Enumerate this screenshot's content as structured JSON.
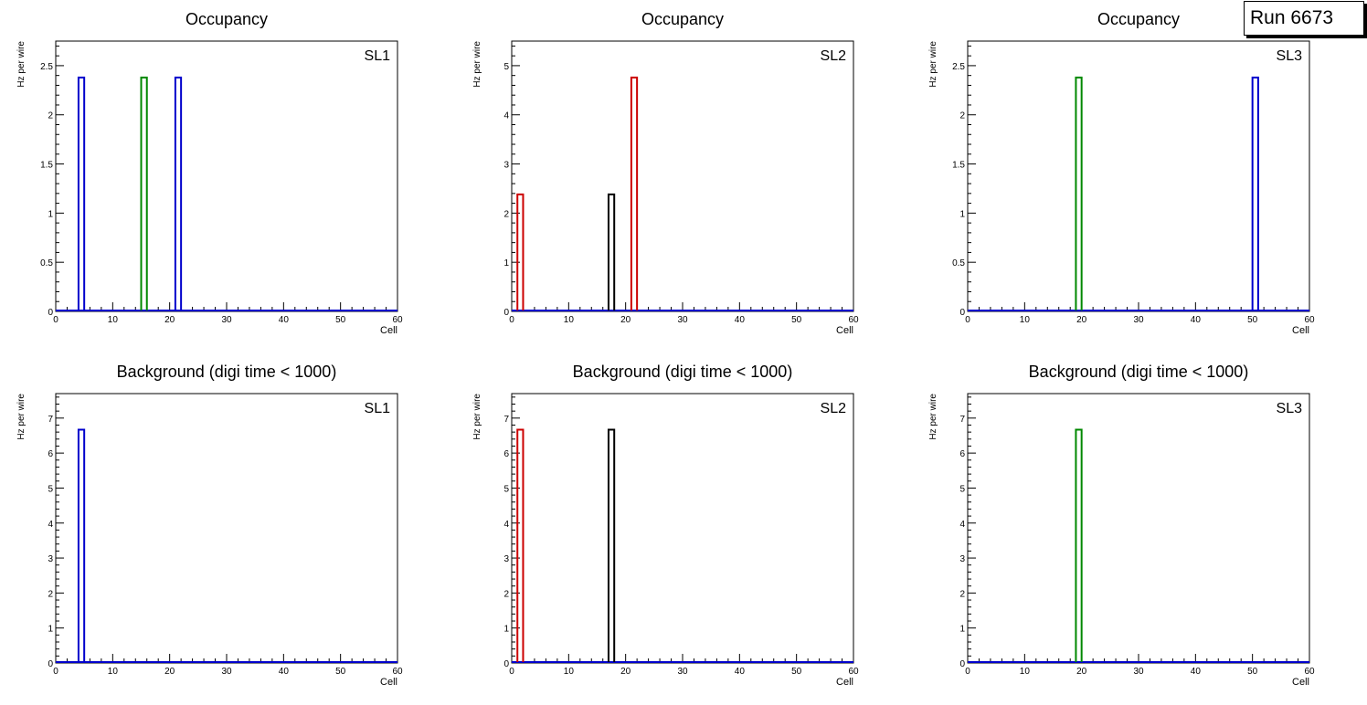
{
  "run_label": "Run 6673",
  "colors": {
    "blue": "#0000cc",
    "green": "#008800",
    "red": "#cc0000",
    "black": "#000000",
    "axis": "#000000"
  },
  "chart_data": [
    {
      "type": "histogram-step",
      "title": "Occupancy",
      "sl_label": "SL1",
      "xlabel": "Cell",
      "ylabel": "Hz per wire",
      "xlim": [
        0,
        60
      ],
      "ylim": [
        0,
        2.75
      ],
      "yticks": [
        0,
        0.5,
        1,
        1.5,
        2,
        2.5
      ],
      "ytick_labels": [
        "0",
        "0.5",
        "1",
        "1.5",
        "2",
        "2.5"
      ],
      "xticks": [
        0,
        10,
        20,
        30,
        40,
        50,
        60
      ],
      "xtick_labels": [
        "0",
        "10",
        "20",
        "30",
        "40",
        "50",
        "60"
      ],
      "series": [
        {
          "name": "layer-blue",
          "color": "blue",
          "bins": [
            {
              "cell": 5,
              "value": 2.38
            },
            {
              "cell": 22,
              "value": 2.38
            }
          ]
        },
        {
          "name": "layer-green",
          "color": "green",
          "bins": [
            {
              "cell": 16,
              "value": 2.38
            }
          ]
        }
      ]
    },
    {
      "type": "histogram-step",
      "title": "Occupancy",
      "sl_label": "SL2",
      "xlabel": "Cell",
      "ylabel": "Hz per wire",
      "xlim": [
        0,
        60
      ],
      "ylim": [
        0,
        5.5
      ],
      "yticks": [
        0,
        1,
        2,
        3,
        4,
        5
      ],
      "ytick_labels": [
        "0",
        "1",
        "2",
        "3",
        "4",
        "5"
      ],
      "xticks": [
        0,
        10,
        20,
        30,
        40,
        50,
        60
      ],
      "xtick_labels": [
        "0",
        "10",
        "20",
        "30",
        "40",
        "50",
        "60"
      ],
      "series": [
        {
          "name": "layer-red",
          "color": "red",
          "bins": [
            {
              "cell": 2,
              "value": 2.38
            },
            {
              "cell": 22,
              "value": 4.76
            }
          ]
        },
        {
          "name": "layer-black",
          "color": "black",
          "bins": [
            {
              "cell": 18,
              "value": 2.38
            }
          ]
        }
      ]
    },
    {
      "type": "histogram-step",
      "title": "Occupancy",
      "sl_label": "SL3",
      "xlabel": "Cell",
      "ylabel": "Hz per wire",
      "xlim": [
        0,
        60
      ],
      "ylim": [
        0,
        2.75
      ],
      "yticks": [
        0,
        0.5,
        1,
        1.5,
        2,
        2.5
      ],
      "ytick_labels": [
        "0",
        "0.5",
        "1",
        "1.5",
        "2",
        "2.5"
      ],
      "xticks": [
        0,
        10,
        20,
        30,
        40,
        50,
        60
      ],
      "xtick_labels": [
        "0",
        "10",
        "20",
        "30",
        "40",
        "50",
        "60"
      ],
      "series": [
        {
          "name": "layer-green",
          "color": "green",
          "bins": [
            {
              "cell": 20,
              "value": 2.38
            }
          ]
        },
        {
          "name": "layer-blue",
          "color": "blue",
          "bins": [
            {
              "cell": 51,
              "value": 2.38
            }
          ]
        }
      ]
    },
    {
      "type": "histogram-step",
      "title": "Background (digi time < 1000)",
      "sl_label": "SL1",
      "xlabel": "Cell",
      "ylabel": "Hz per wire",
      "xlim": [
        0,
        60
      ],
      "ylim": [
        0,
        7.7
      ],
      "yticks": [
        0,
        1,
        2,
        3,
        4,
        5,
        6,
        7
      ],
      "ytick_labels": [
        "0",
        "1",
        "2",
        "3",
        "4",
        "5",
        "6",
        "7"
      ],
      "xticks": [
        0,
        10,
        20,
        30,
        40,
        50,
        60
      ],
      "xtick_labels": [
        "0",
        "10",
        "20",
        "30",
        "40",
        "50",
        "60"
      ],
      "series": [
        {
          "name": "layer-blue",
          "color": "blue",
          "bins": [
            {
              "cell": 5,
              "value": 6.67
            }
          ]
        }
      ]
    },
    {
      "type": "histogram-step",
      "title": "Background (digi time < 1000)",
      "sl_label": "SL2",
      "xlabel": "Cell",
      "ylabel": "Hz per wire",
      "xlim": [
        0,
        60
      ],
      "ylim": [
        0,
        7.7
      ],
      "yticks": [
        0,
        1,
        2,
        3,
        4,
        5,
        6,
        7
      ],
      "ytick_labels": [
        "0",
        "1",
        "2",
        "3",
        "4",
        "5",
        "6",
        "7"
      ],
      "xticks": [
        0,
        10,
        20,
        30,
        40,
        50,
        60
      ],
      "xtick_labels": [
        "0",
        "10",
        "20",
        "30",
        "40",
        "50",
        "60"
      ],
      "series": [
        {
          "name": "layer-red",
          "color": "red",
          "bins": [
            {
              "cell": 2,
              "value": 6.67
            }
          ]
        },
        {
          "name": "layer-black",
          "color": "black",
          "bins": [
            {
              "cell": 18,
              "value": 6.67
            }
          ]
        }
      ]
    },
    {
      "type": "histogram-step",
      "title": "Background (digi time < 1000)",
      "sl_label": "SL3",
      "xlabel": "Cell",
      "ylabel": "Hz per wire",
      "xlim": [
        0,
        60
      ],
      "ylim": [
        0,
        7.7
      ],
      "yticks": [
        0,
        1,
        2,
        3,
        4,
        5,
        6,
        7
      ],
      "ytick_labels": [
        "0",
        "1",
        "2",
        "3",
        "4",
        "5",
        "6",
        "7"
      ],
      "xticks": [
        0,
        10,
        20,
        30,
        40,
        50,
        60
      ],
      "xtick_labels": [
        "0",
        "10",
        "20",
        "30",
        "40",
        "50",
        "60"
      ],
      "series": [
        {
          "name": "layer-green",
          "color": "green",
          "bins": [
            {
              "cell": 20,
              "value": 6.67
            }
          ]
        }
      ]
    }
  ]
}
